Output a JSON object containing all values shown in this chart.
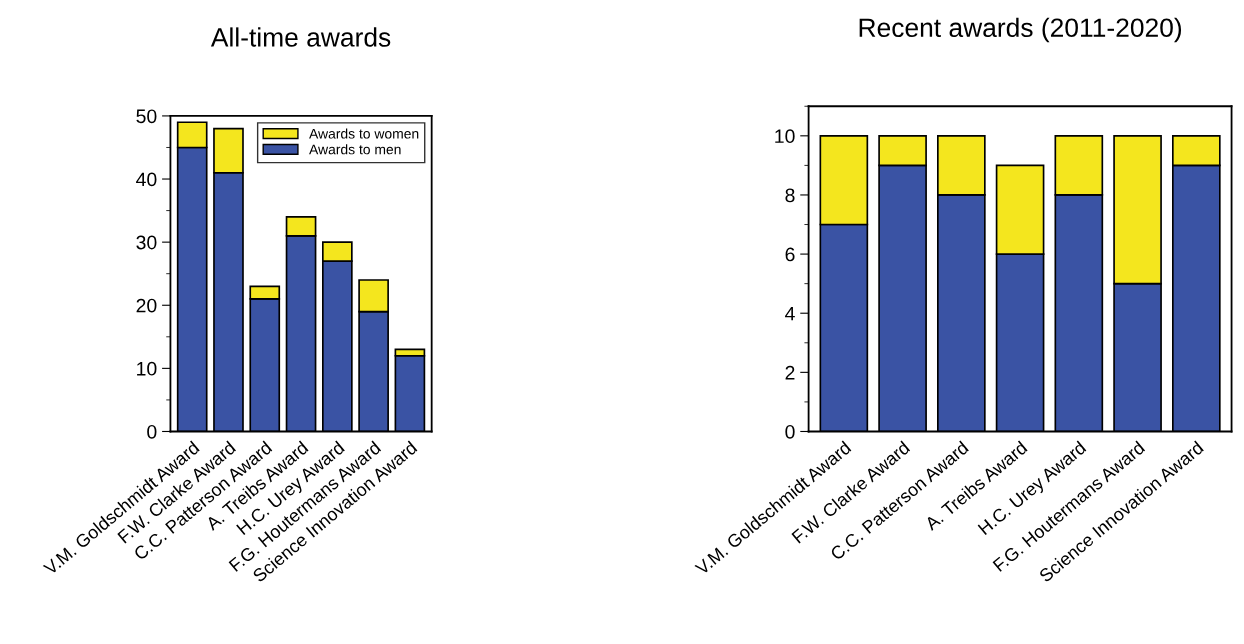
{
  "chart_data": [
    {
      "type": "bar",
      "title": "All-time awards",
      "stacked": true,
      "categories": [
        "V.M. Goldschmidt Award",
        "F.W. Clarke Award",
        "C.C. Patterson Award",
        "A. Treibs Award",
        "H.C. Urey Award",
        "F.G. Houtermans Award",
        "Science Innovation Award"
      ],
      "series": [
        {
          "name": "Awards to men",
          "color": "#3a53a4",
          "values": [
            45,
            41,
            21,
            31,
            27,
            19,
            12
          ]
        },
        {
          "name": "Awards to women",
          "color": "#f4e61e",
          "values": [
            4,
            7,
            2,
            3,
            3,
            5,
            1
          ]
        }
      ],
      "ylim": [
        0,
        50
      ],
      "yticks": [
        0,
        10,
        20,
        30,
        40,
        50
      ],
      "legend": "top right"
    },
    {
      "type": "bar",
      "title": "Recent awards (2011-2020)",
      "stacked": true,
      "categories": [
        "V.M. Goldschmidt Award",
        "F.W. Clarke Award",
        "C.C. Patterson Award",
        "A. Treibs Award",
        "H.C. Urey Award",
        "F.G. Houtermans Award",
        "Science Innovation Award"
      ],
      "series": [
        {
          "color": "#3a53a4",
          "values": [
            7,
            9,
            8,
            6,
            8,
            5,
            9
          ]
        },
        {
          "color": "#f4e61e",
          "values": [
            3,
            1,
            2,
            3,
            2,
            5,
            1
          ]
        }
      ],
      "ylim": [
        0,
        11
      ],
      "yticks": [
        0,
        2,
        4,
        6,
        8,
        10
      ]
    }
  ]
}
